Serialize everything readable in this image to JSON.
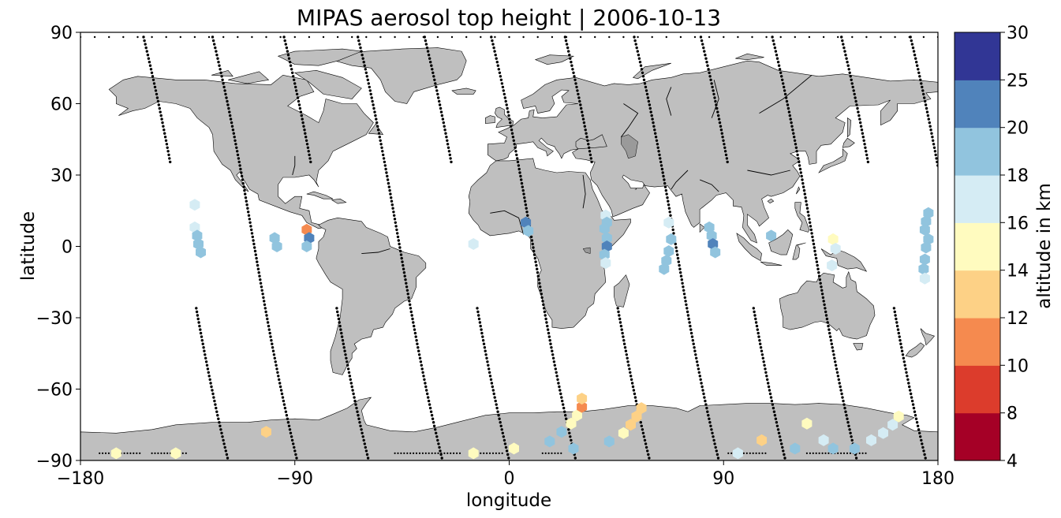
{
  "chart_data": {
    "type": "scatter",
    "title": "MIPAS aerosol top height | 2006-10-13",
    "xlabel": "longitude",
    "ylabel": "latitude",
    "xlim": [
      -180,
      180
    ],
    "ylim": [
      -90,
      90
    ],
    "xticks": [
      -180,
      -90,
      0,
      90,
      180
    ],
    "yticks": [
      -90,
      -60,
      -30,
      0,
      30,
      60,
      90
    ],
    "xtick_labels": [
      "−180",
      "−90",
      "0",
      "90",
      "180"
    ],
    "ytick_labels": [
      "−90",
      "−60",
      "−30",
      "0",
      "30",
      "60",
      "90"
    ],
    "land_color": "#bfbfbf",
    "grid": false,
    "colorbar": {
      "label": "altitude in km",
      "boundaries": [
        4,
        8,
        10,
        12,
        14,
        16,
        18,
        20,
        25,
        30
      ],
      "tick_labels": [
        "4",
        "8",
        "10",
        "12",
        "14",
        "16",
        "18",
        "20",
        "25",
        "30"
      ],
      "colors": [
        "#a50026",
        "#d73027",
        "#f46d43",
        "#fdae61",
        "#fee090",
        "#ffffbf",
        "#e0f3f8",
        "#abd9e9",
        "#74add1",
        "#313695"
      ],
      "display_colors": [
        "#a50026",
        "#dc3c2c",
        "#f58a4f",
        "#fdd186",
        "#fffbbf",
        "#d5ecf4",
        "#91c4de",
        "#5083bb",
        "#313695"
      ]
    },
    "series": [
      {
        "values": [
          {
            "lon": -132,
            "lat": 17.5,
            "alt": 17
          },
          {
            "lon": -132,
            "lat": 8,
            "alt": 17
          },
          {
            "lon": -131,
            "lat": 4.5,
            "alt": 19
          },
          {
            "lon": -130.5,
            "lat": 1,
            "alt": 19
          },
          {
            "lon": -129.5,
            "lat": -2.5,
            "alt": 19
          },
          {
            "lon": -98.5,
            "lat": 3.5,
            "alt": 19
          },
          {
            "lon": -97.5,
            "lat": 0,
            "alt": 19
          },
          {
            "lon": -85,
            "lat": 7,
            "alt": 11
          },
          {
            "lon": -84,
            "lat": 3.5,
            "alt": 21
          },
          {
            "lon": -85,
            "lat": 0,
            "alt": 19
          },
          {
            "lon": -15,
            "lat": 1,
            "alt": 17
          },
          {
            "lon": 7,
            "lat": 10,
            "alt": 21
          },
          {
            "lon": 8,
            "lat": 6.5,
            "alt": 19
          },
          {
            "lon": 40.5,
            "lat": 13,
            "alt": 17
          },
          {
            "lon": 41,
            "lat": 10,
            "alt": 19
          },
          {
            "lon": 40,
            "lat": 7.5,
            "alt": 19
          },
          {
            "lon": 41,
            "lat": 3.5,
            "alt": 19
          },
          {
            "lon": 41,
            "lat": 0,
            "alt": 21
          },
          {
            "lon": 40,
            "lat": -3.5,
            "alt": 19
          },
          {
            "lon": 40.5,
            "lat": -7,
            "alt": 17
          },
          {
            "lon": 67,
            "lat": 10,
            "alt": 17
          },
          {
            "lon": 68,
            "lat": 3,
            "alt": 19
          },
          {
            "lon": 67,
            "lat": -2,
            "alt": 19
          },
          {
            "lon": 66,
            "lat": -6,
            "alt": 19
          },
          {
            "lon": 65,
            "lat": -9.5,
            "alt": 19
          },
          {
            "lon": 84,
            "lat": 8,
            "alt": 19
          },
          {
            "lon": 85,
            "lat": 4.5,
            "alt": 19
          },
          {
            "lon": 85.5,
            "lat": 1,
            "alt": 21
          },
          {
            "lon": 86.5,
            "lat": -2.5,
            "alt": 19
          },
          {
            "lon": 110,
            "lat": 4.5,
            "alt": 19
          },
          {
            "lon": 136,
            "lat": 3,
            "alt": 15
          },
          {
            "lon": 137,
            "lat": -1,
            "alt": 17
          },
          {
            "lon": 135.5,
            "lat": -8,
            "alt": 17
          },
          {
            "lon": 176,
            "lat": 14,
            "alt": 19
          },
          {
            "lon": 175,
            "lat": 10.5,
            "alt": 19
          },
          {
            "lon": 174.5,
            "lat": 7,
            "alt": 19
          },
          {
            "lon": 176,
            "lat": 3,
            "alt": 19
          },
          {
            "lon": 175,
            "lat": -0.5,
            "alt": 19
          },
          {
            "lon": 174.5,
            "lat": -5.5,
            "alt": 19
          },
          {
            "lon": 174,
            "lat": -9.5,
            "alt": 19
          },
          {
            "lon": 174.5,
            "lat": -13.5,
            "alt": 17
          },
          {
            "lon": -165,
            "lat": -87,
            "alt": 15
          },
          {
            "lon": -140,
            "lat": -87,
            "alt": 15
          },
          {
            "lon": -102,
            "lat": -78,
            "alt": 13
          },
          {
            "lon": -15,
            "lat": -87,
            "alt": 15
          },
          {
            "lon": 2,
            "lat": -85,
            "alt": 15
          },
          {
            "lon": 17,
            "lat": -82,
            "alt": 19
          },
          {
            "lon": 22,
            "lat": -78,
            "alt": 19
          },
          {
            "lon": 26,
            "lat": -74.5,
            "alt": 15
          },
          {
            "lon": 28.5,
            "lat": -71,
            "alt": 15
          },
          {
            "lon": 30.5,
            "lat": -67.5,
            "alt": 11
          },
          {
            "lon": 30.5,
            "lat": -64,
            "alt": 13
          },
          {
            "lon": 27,
            "lat": -85,
            "alt": 19
          },
          {
            "lon": 42,
            "lat": -82,
            "alt": 19
          },
          {
            "lon": 48,
            "lat": -78.5,
            "alt": 15
          },
          {
            "lon": 51,
            "lat": -75,
            "alt": 13
          },
          {
            "lon": 53.5,
            "lat": -71.5,
            "alt": 13
          },
          {
            "lon": 55.5,
            "lat": -68,
            "alt": 13
          },
          {
            "lon": 96,
            "lat": -87,
            "alt": 17
          },
          {
            "lon": 106,
            "lat": -81.5,
            "alt": 13
          },
          {
            "lon": 120,
            "lat": -85,
            "alt": 19
          },
          {
            "lon": 125,
            "lat": -74.5,
            "alt": 15
          },
          {
            "lon": 132,
            "lat": -81.5,
            "alt": 17
          },
          {
            "lon": 136,
            "lat": -85,
            "alt": 19
          },
          {
            "lon": 145,
            "lat": -85,
            "alt": 19
          },
          {
            "lon": 152,
            "lat": -81.5,
            "alt": 17
          },
          {
            "lon": 157,
            "lat": -78.5,
            "alt": 17
          },
          {
            "lon": 161,
            "lat": -75,
            "alt": 17
          },
          {
            "lon": 163.5,
            "lat": -71.5,
            "alt": 15
          }
        ]
      }
    ]
  }
}
